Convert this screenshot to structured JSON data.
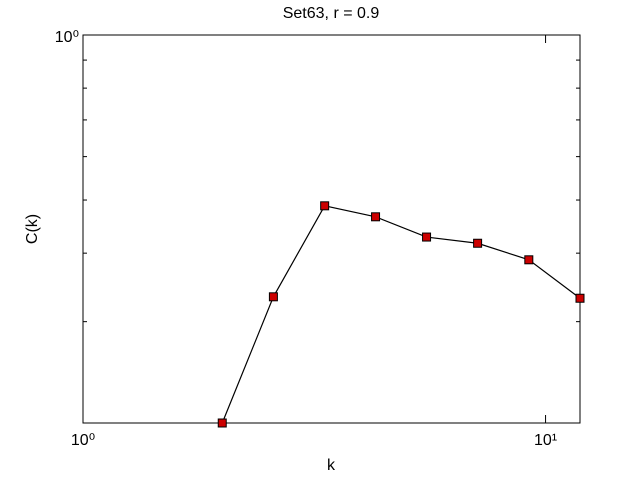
{
  "chart_data": {
    "type": "line",
    "title": "Set63, r = 0.9",
    "xlabel": "k",
    "ylabel": "C(k)",
    "x": [
      2,
      2.58,
      3.33,
      4.29,
      5.53,
      7.13,
      9.2,
      11.87
    ],
    "series": [
      {
        "color": "#000000",
        "marker_color": "#cc0000",
        "values": [
          0.196,
          0.333,
          0.488,
          0.466,
          0.428,
          0.417,
          0.389,
          0.331
        ]
      }
    ],
    "xscale": "log",
    "yscale": "log",
    "xlim": [
      1,
      11.87
    ],
    "ylim": [
      0.196,
      1
    ],
    "xticks": [
      {
        "value": 1,
        "label": "10⁰"
      },
      {
        "value": 10,
        "label": "10¹"
      }
    ],
    "yticks": [
      {
        "value": 1,
        "label": "10⁰"
      }
    ],
    "yminor_ticks": [
      0.3,
      0.4,
      0.5,
      0.6,
      0.7,
      0.8,
      0.9
    ]
  }
}
